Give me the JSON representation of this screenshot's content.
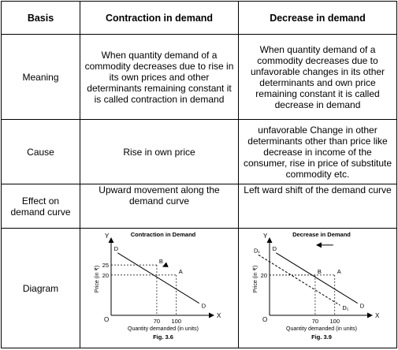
{
  "header": {
    "basis": "Basis",
    "contraction": "Contraction in demand",
    "decrease": "Decrease in demand"
  },
  "rows": {
    "meaning": {
      "label": "Meaning",
      "contraction": "When quantity demand of a commodity decreases due to rise in its own prices and other determinants remaining constant it is called contraction in demand",
      "decrease": "When quantity demand of a commodity decreases due to unfavorable changes in its other determinants and own price remaining constant it is called decrease in demand"
    },
    "cause": {
      "label": "Cause",
      "contraction": "Rise in own price",
      "decrease": "unfavorable Change in other determinants other than price like decrease in income of the consumer, rise in price of substitute commodity etc."
    },
    "effect": {
      "label": "Effect on demand curve",
      "contraction": "Upward movement along the demand curve",
      "decrease": "Left ward shift of the demand curve"
    },
    "diagram": {
      "label": "Diagram"
    }
  },
  "chart_data": [
    {
      "type": "line",
      "title": "Contraction in Demand",
      "xlabel": "Quantity demanded (in units)",
      "ylabel": "Price (in ₹)",
      "x_axis_letter": "X",
      "y_axis_letter": "Y",
      "origin_label": "O",
      "x_ticks": [
        "70",
        "100"
      ],
      "y_ticks": [
        "25",
        "20"
      ],
      "xlim": [
        0,
        145
      ],
      "ylim": [
        0,
        36
      ],
      "series": [
        {
          "name": "D",
          "x": [
            10,
            135
          ],
          "y": [
            31,
            6
          ]
        }
      ],
      "points": [
        {
          "label": "B",
          "x": 70,
          "y": 25
        },
        {
          "label": "A",
          "x": 100,
          "y": 20
        }
      ],
      "arrow": "A to B along the curve",
      "figure_label": "Fig. 3.6"
    },
    {
      "type": "line",
      "title": "Decrease in Demand",
      "xlabel": "Quantity demanded (in units)",
      "ylabel": "Price (in ₹)",
      "x_axis_letter": "X",
      "y_axis_letter": "Y",
      "origin_label": "O",
      "x_ticks": [
        "70",
        "100"
      ],
      "y_ticks": [
        "20"
      ],
      "xlim": [
        0,
        145
      ],
      "ylim": [
        0,
        36
      ],
      "series": [
        {
          "name": "D",
          "x": [
            10,
            135
          ],
          "y": [
            31,
            6
          ]
        },
        {
          "name": "D₁",
          "x": [
            -17,
            108
          ],
          "y": [
            30,
            5
          ],
          "style": "dashed"
        }
      ],
      "points": [
        {
          "label": "B",
          "x": 70,
          "y": 20
        },
        {
          "label": "A",
          "x": 100,
          "y": 20
        }
      ],
      "arrow": "A to B leftward shift",
      "figure_label": "Fig. 3.9"
    }
  ]
}
